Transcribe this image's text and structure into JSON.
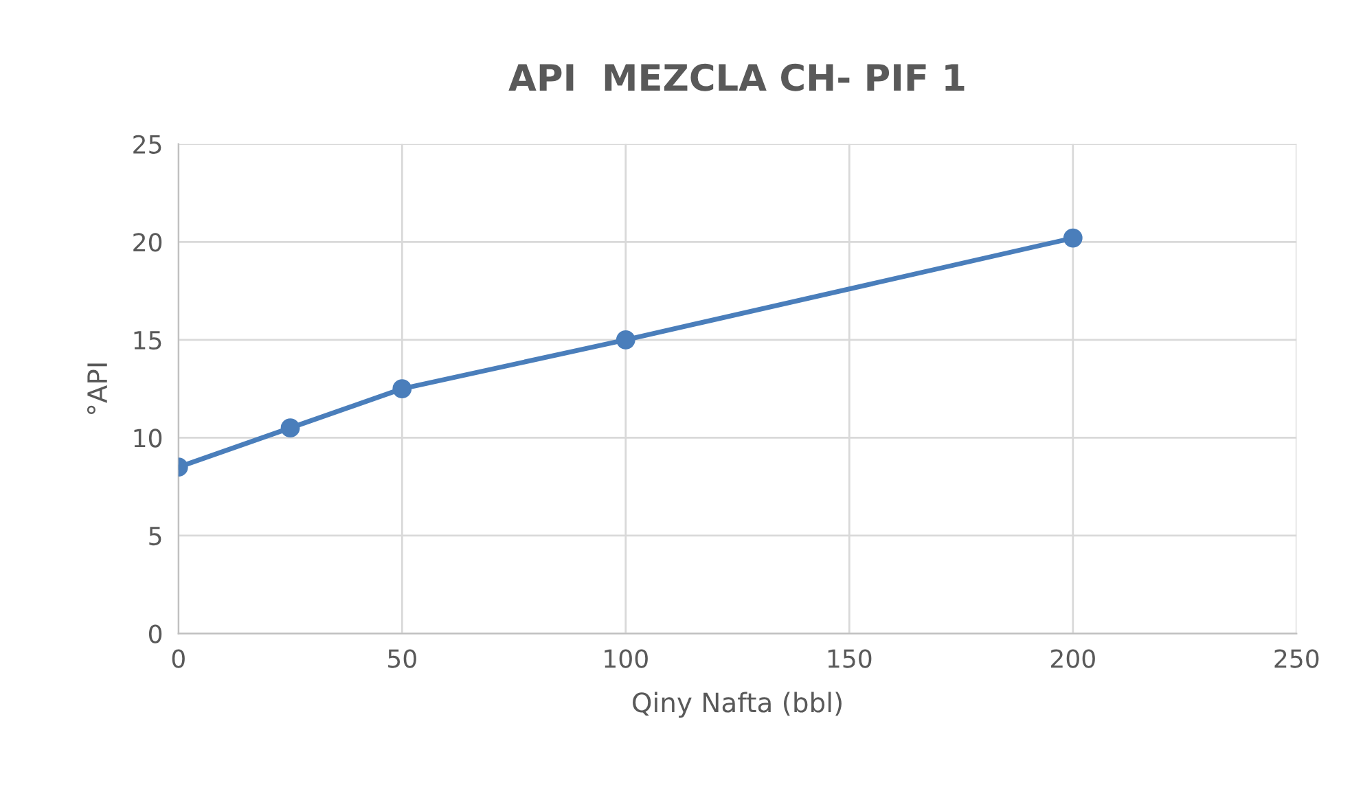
{
  "chart_data": {
    "type": "line",
    "title": "API  MEZCLA CH- PIF 1",
    "xlabel": "Qiny Nafta (bbl)",
    "ylabel": "°API",
    "x": [
      0,
      25,
      50,
      100,
      200
    ],
    "series": [
      {
        "color": "#4a7ebb",
        "values": [
          8.5,
          10.5,
          12.5,
          15.0,
          20.2
        ]
      }
    ],
    "xlim": [
      0,
      250
    ],
    "xticks": [
      0,
      50,
      100,
      150,
      200,
      250
    ],
    "ylim": [
      0,
      25
    ],
    "yticks": [
      0,
      5,
      10,
      15,
      20,
      25
    ],
    "grid": true,
    "marker": "circle",
    "line_style": "solid"
  }
}
